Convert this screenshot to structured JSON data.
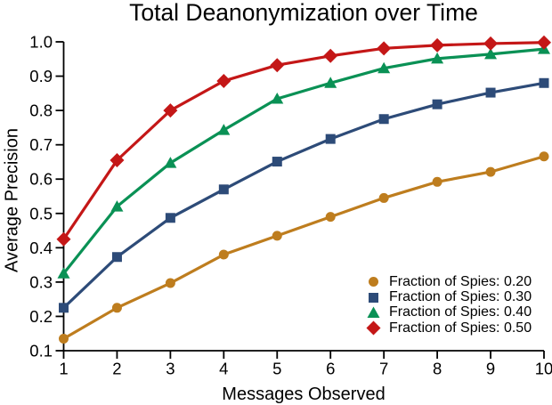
{
  "chart_data": {
    "type": "line",
    "title": "Total Deanonymization over Time",
    "xlabel": "Messages Observed",
    "ylabel": "Average Precision",
    "x": [
      1,
      2,
      3,
      4,
      5,
      6,
      7,
      8,
      9,
      10
    ],
    "xlim": [
      1,
      10
    ],
    "ylim": [
      0.1,
      1.0
    ],
    "xticks": [
      1,
      2,
      3,
      4,
      5,
      6,
      7,
      8,
      9,
      10
    ],
    "yticks": [
      0.1,
      0.2,
      0.3,
      0.4,
      0.5,
      0.6,
      0.7,
      0.8,
      0.9,
      1.0
    ],
    "grid": false,
    "legend_position": "lower-right-inside",
    "legend_frame": false,
    "series": [
      {
        "name": "Fraction of Spies: 0.20",
        "color": "#BE7D1E",
        "marker": "circle",
        "values": [
          0.135,
          0.225,
          0.297,
          0.38,
          0.435,
          0.49,
          0.545,
          0.592,
          0.621,
          0.666
        ]
      },
      {
        "name": "Fraction of Spies: 0.30",
        "color": "#2D4B78",
        "marker": "square",
        "values": [
          0.225,
          0.373,
          0.487,
          0.57,
          0.651,
          0.717,
          0.775,
          0.818,
          0.852,
          0.88
        ]
      },
      {
        "name": "Fraction of Spies: 0.40",
        "color": "#0A9155",
        "marker": "triangle",
        "values": [
          0.325,
          0.52,
          0.647,
          0.743,
          0.834,
          0.88,
          0.923,
          0.951,
          0.964,
          0.979
        ]
      },
      {
        "name": "Fraction of Spies: 0.50",
        "color": "#C41717",
        "marker": "diamond",
        "values": [
          0.425,
          0.655,
          0.8,
          0.886,
          0.932,
          0.959,
          0.981,
          0.99,
          0.995,
          0.998
        ]
      }
    ]
  }
}
